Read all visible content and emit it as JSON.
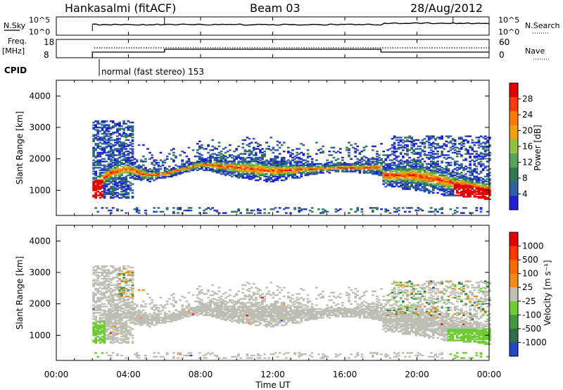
{
  "header": {
    "station": "Hankasalmi (fitACF)",
    "beam": "Beam 03",
    "date": "28/Aug/2012"
  },
  "noise_panel": {
    "left_label": "N.Sky",
    "right_label": "N.Search",
    "left_ticks": [
      "10^5",
      "10^0"
    ],
    "right_ticks": [
      "10^5",
      "10^0"
    ]
  },
  "freq_panel": {
    "left_label_line1": "Freq.",
    "left_label_line2": "[MHz]",
    "right_label": "Nave",
    "left_ticks": [
      "18",
      "8"
    ],
    "right_ticks": [
      "60",
      "0"
    ]
  },
  "cpid": {
    "label": "CPID",
    "mode_text": "normal (fast stereo) 153"
  },
  "colors": {
    "power_scale": [
      "#1f1fd8",
      "#2f5fa8",
      "#2e7a52",
      "#55a45a",
      "#8ec23f",
      "#f3a10a",
      "#ff7a00",
      "#ff3a00",
      "#e80000"
    ],
    "velocity_scale": [
      "#2146c7",
      "#2d6e45",
      "#3f9a3a",
      "#70cc35",
      "#bfbfb6",
      "#f28a14",
      "#ff6a00",
      "#ff3600",
      "#e50000"
    ],
    "ground_scatter": "#bebeb4"
  },
  "chart_data": [
    {
      "type": "heatmap",
      "name": "power",
      "ylabel": "Slant Range [km]",
      "yticks": [
        "4000",
        "3000",
        "2000",
        "1000"
      ],
      "ylim": [
        200,
        4500
      ],
      "xlim_hours": [
        0,
        24
      ],
      "colorbar_label": "Power [dB]",
      "colorbar_ticks": [
        "28",
        "24",
        "20",
        "16",
        "12",
        "8",
        "4"
      ],
      "colorbar_range": [
        0,
        32
      ],
      "data_start_hour": 2.0,
      "data_end_hour": 24.0,
      "main_band_center_km_by_hour": [
        [
          2.0,
          1100
        ],
        [
          3.0,
          1550
        ],
        [
          4.0,
          1650
        ],
        [
          5.0,
          1450
        ],
        [
          6.0,
          1500
        ],
        [
          8.0,
          1800
        ],
        [
          10.0,
          1700
        ],
        [
          12.0,
          1600
        ],
        [
          14.0,
          1650
        ],
        [
          16.0,
          1700
        ],
        [
          18.0,
          1700
        ],
        [
          18.1,
          1450
        ],
        [
          20.0,
          1450
        ],
        [
          22.0,
          1200
        ],
        [
          24.0,
          1000
        ]
      ]
    },
    {
      "type": "heatmap",
      "name": "velocity",
      "ylabel": "Slant Range [km]",
      "yticks": [
        "4000",
        "3000",
        "2000",
        "1000"
      ],
      "ylim": [
        200,
        4500
      ],
      "xlim_hours": [
        0,
        24
      ],
      "colorbar_label": "Velocity [m s⁻¹]",
      "colorbar_ticks": [
        "1000",
        "500",
        "100",
        "25",
        "-25",
        "-100",
        "-500",
        "-1000"
      ],
      "colorbar_range": [
        -1000,
        1000
      ]
    }
  ],
  "time_axis": {
    "ticks": [
      "00:00",
      "04:00",
      "08:00",
      "12:00",
      "16:00",
      "20:00",
      "00:00"
    ],
    "label": "Time UT"
  }
}
